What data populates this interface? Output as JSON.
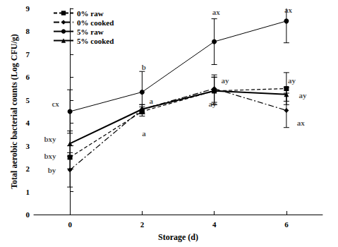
{
  "chart_data": {
    "type": "line",
    "x_label": "Storage (d)",
    "y_label": "Total aerobic bacterial counts (Log CFU/g)",
    "xlim": [
      -1,
      7
    ],
    "xticks": [
      0,
      2,
      4,
      6
    ],
    "ylim": [
      0,
      9
    ],
    "yticks": [
      0,
      1,
      2,
      3,
      4,
      5,
      6,
      7,
      8,
      9
    ],
    "grid": false,
    "legend": "top-left",
    "series": [
      {
        "name": "0% raw",
        "color": "#000000",
        "marker": "square",
        "line_style": "dashed",
        "x": [
          0,
          2,
          4,
          6
        ],
        "values": [
          2.5,
          4.5,
          5.4,
          5.5
        ],
        "errors": [
          0.5,
          0.2,
          0.6,
          0.7
        ]
      },
      {
        "name": "0% cooked",
        "color": "#000000",
        "marker": "diamond",
        "line_style": "dashdot",
        "x": [
          0,
          2,
          4,
          6
        ],
        "values": [
          1.95,
          4.6,
          5.5,
          4.55
        ],
        "errors": [
          0.75,
          0.2,
          0.6,
          0.75
        ]
      },
      {
        "name": "5% raw",
        "color": "#000000",
        "marker": "circle",
        "line_style": "solid",
        "x": [
          0,
          2,
          4,
          6
        ],
        "values": [
          4.5,
          5.35,
          7.55,
          8.45
        ],
        "errors": [
          0.95,
          0.9,
          1.0,
          0.95
        ]
      },
      {
        "name": "5% cooked",
        "color": "#000000",
        "marker": "triangle",
        "line_style": "solid",
        "x": [
          0,
          2,
          4,
          6
        ],
        "values": [
          3.1,
          4.6,
          5.4,
          5.25
        ],
        "errors": [
          0.55,
          0.2,
          0.6,
          0.3
        ]
      }
    ],
    "annotations": [
      {
        "text": "cx",
        "x": -0.4,
        "y": 4.85
      },
      {
        "text": "bxy",
        "x": -0.55,
        "y": 3.3
      },
      {
        "text": "bxy",
        "x": -0.55,
        "y": 2.55
      },
      {
        "text": "by",
        "x": -0.5,
        "y": 1.95
      },
      {
        "text": "b",
        "x": 2.05,
        "y": 6.45
      },
      {
        "text": "a",
        "x": 2.25,
        "y": 4.95
      },
      {
        "text": "a",
        "x": 2.05,
        "y": 3.55
      },
      {
        "text": "ax",
        "x": 4.05,
        "y": 8.85
      },
      {
        "text": "ay",
        "x": 4.3,
        "y": 5.85
      },
      {
        "text": "ay",
        "x": 3.95,
        "y": 4.85
      },
      {
        "text": "ax",
        "x": 6.05,
        "y": 8.95
      },
      {
        "text": "ay",
        "x": 6.15,
        "y": 5.85
      },
      {
        "text": "ay",
        "x": 6.45,
        "y": 5.2
      },
      {
        "text": "ax",
        "x": 6.4,
        "y": 4.0
      }
    ]
  }
}
